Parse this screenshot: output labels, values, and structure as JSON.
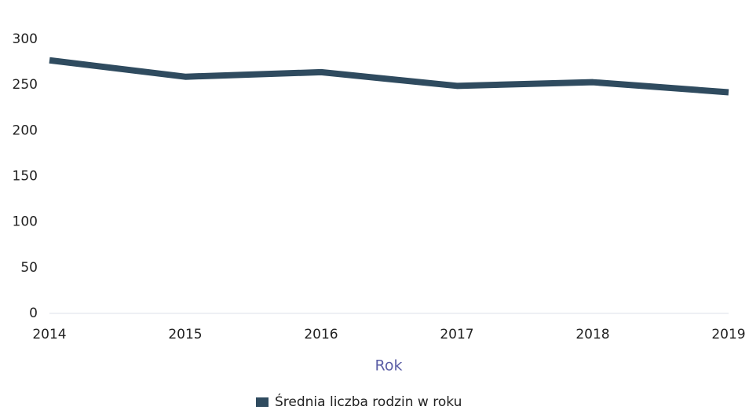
{
  "chart_data": {
    "type": "line",
    "categories": [
      "2014",
      "2015",
      "2016",
      "2017",
      "2018",
      "2019"
    ],
    "series": [
      {
        "name": "Średnia liczba rodzin w roku",
        "color": "#2f4b5f",
        "values": [
          277,
          259,
          264,
          249,
          253,
          242
        ]
      }
    ],
    "xlabel": "Rok",
    "ylim": [
      0,
      300
    ],
    "yticks": [
      0,
      50,
      100,
      150,
      200,
      250,
      300
    ],
    "grid": false,
    "legend": "bottom"
  }
}
